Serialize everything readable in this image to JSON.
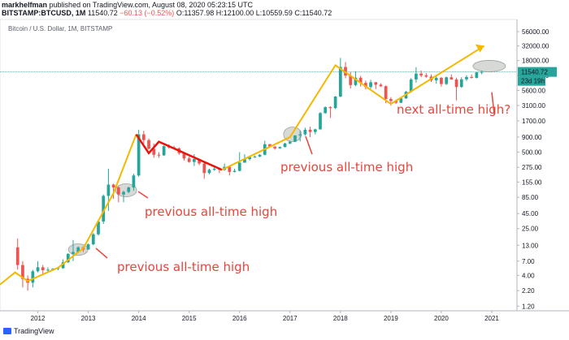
{
  "header": {
    "author": "markhelfman",
    "published": "published on TradingView.com, August 08, 2020 05:23:15 UTC",
    "symbol": "BITSTAMP:BTCUSD, 1M",
    "last": "11540.72",
    "change": "−60.13 (−0.52%)",
    "open": "O:11357.98",
    "high": "H:12100.00",
    "low": "L:10559.59",
    "close": "C:11540.72"
  },
  "footer": {
    "brand": "TradingView"
  },
  "chart_data": {
    "type": "candlestick",
    "title": "Bitcoin / U.S. Dollar, 1M, BITSTAMP",
    "y_scale": "log",
    "ylim": [
      1,
      90000
    ],
    "xlim": [
      2011.25,
      2021.5
    ],
    "y_ticks": [
      1.2,
      2.2,
      4.0,
      7.0,
      13.0,
      25.0,
      45.0,
      85.0,
      155.0,
      275.0,
      500.0,
      900.0,
      1700.0,
      3100.0,
      5600.0,
      10000.0,
      18000.0,
      32000.0,
      56000.0
    ],
    "x_ticks": [
      "2012",
      "2013",
      "2014",
      "2015",
      "2016",
      "2017",
      "2018",
      "2019",
      "2020",
      "2021"
    ],
    "last_price_label": "11540.72",
    "countdown_label": "23d 19h",
    "candles": [
      [
        2011.6,
        12,
        17,
        5,
        6
      ],
      [
        2011.7,
        6,
        7,
        2.5,
        3.5
      ],
      [
        2011.8,
        3.5,
        4,
        2.2,
        3
      ],
      [
        2011.9,
        3,
        5,
        2.5,
        4.7
      ],
      [
        2012.0,
        4.7,
        7,
        4.5,
        5.5
      ],
      [
        2012.1,
        5.5,
        6,
        4.3,
        4.9
      ],
      [
        2012.2,
        4.9,
        5.5,
        4.5,
        5
      ],
      [
        2012.3,
        5,
        5.3,
        4.8,
        5.2
      ],
      [
        2012.4,
        5.2,
        5.5,
        4.9,
        5.3
      ],
      [
        2012.5,
        5.3,
        7.5,
        5.2,
        6.7
      ],
      [
        2012.6,
        6.7,
        9.5,
        6.5,
        9.3
      ],
      [
        2012.7,
        9.3,
        16,
        7,
        10
      ],
      [
        2012.8,
        10,
        12.5,
        9.5,
        12
      ],
      [
        2012.9,
        12,
        12.5,
        10,
        11
      ],
      [
        2013.0,
        11,
        14,
        11,
        13.5
      ],
      [
        2013.1,
        13.5,
        21,
        13,
        20
      ],
      [
        2013.2,
        20,
        35,
        19,
        33
      ],
      [
        2013.3,
        33,
        95,
        30,
        90
      ],
      [
        2013.4,
        90,
        260,
        50,
        140
      ],
      [
        2013.5,
        140,
        145,
        80,
        125
      ],
      [
        2013.6,
        125,
        130,
        70,
        95
      ],
      [
        2013.7,
        95,
        110,
        70,
        105
      ],
      [
        2013.8,
        105,
        130,
        100,
        125
      ],
      [
        2013.9,
        125,
        215,
        110,
        200
      ],
      [
        2014.0,
        200,
        1200,
        190,
        1000
      ],
      [
        2014.1,
        1000,
        1150,
        700,
        800
      ],
      [
        2014.2,
        800,
        850,
        550,
        570
      ],
      [
        2014.3,
        570,
        700,
        400,
        450
      ],
      [
        2014.4,
        450,
        500,
        400,
        440
      ],
      [
        2014.5,
        440,
        650,
        430,
        630
      ],
      [
        2014.6,
        630,
        680,
        570,
        600
      ],
      [
        2014.7,
        600,
        640,
        560,
        580
      ],
      [
        2014.8,
        580,
        600,
        450,
        480
      ],
      [
        2014.9,
        480,
        490,
        360,
        390
      ],
      [
        2015.0,
        390,
        420,
        330,
        340
      ],
      [
        2015.1,
        340,
        460,
        290,
        380
      ],
      [
        2015.2,
        380,
        390,
        300,
        320
      ],
      [
        2015.3,
        320,
        330,
        175,
        220
      ],
      [
        2015.4,
        220,
        260,
        210,
        250
      ],
      [
        2015.5,
        250,
        300,
        240,
        260
      ],
      [
        2015.6,
        260,
        270,
        220,
        250
      ],
      [
        2015.7,
        250,
        320,
        240,
        280
      ],
      [
        2015.8,
        280,
        290,
        200,
        230
      ],
      [
        2015.9,
        230,
        260,
        225,
        240
      ],
      [
        2016.0,
        240,
        500,
        235,
        330
      ],
      [
        2016.1,
        330,
        460,
        340,
        380
      ],
      [
        2016.2,
        380,
        420,
        360,
        410
      ],
      [
        2016.3,
        410,
        440,
        400,
        420
      ],
      [
        2016.4,
        420,
        460,
        410,
        450
      ],
      [
        2016.5,
        450,
        780,
        440,
        680
      ],
      [
        2016.6,
        680,
        690,
        600,
        620
      ],
      [
        2016.7,
        620,
        630,
        550,
        580
      ],
      [
        2016.8,
        580,
        620,
        570,
        610
      ],
      [
        2016.9,
        610,
        720,
        600,
        700
      ],
      [
        2017.0,
        700,
        780,
        680,
        750
      ],
      [
        2017.1,
        750,
        960,
        740,
        960
      ],
      [
        2017.2,
        960,
        1150,
        760,
        1000
      ],
      [
        2017.3,
        1000,
        1300,
        950,
        1200
      ],
      [
        2017.4,
        1200,
        1350,
        900,
        1100
      ],
      [
        2017.5,
        1100,
        1250,
        1000,
        1220
      ],
      [
        2017.6,
        1220,
        2400,
        1200,
        2300
      ],
      [
        2017.7,
        2300,
        3000,
        2250,
        2900
      ],
      [
        2017.8,
        2900,
        3000,
        1900,
        2800
      ],
      [
        2017.9,
        2800,
        4500,
        2700,
        4400
      ],
      [
        2018.0,
        4400,
        20000,
        4300,
        14000
      ],
      [
        2018.1,
        14000,
        17000,
        9000,
        10000
      ],
      [
        2018.2,
        10000,
        11500,
        6000,
        6900
      ],
      [
        2018.3,
        6900,
        11700,
        6600,
        9200
      ],
      [
        2018.4,
        9200,
        9900,
        6500,
        7500
      ],
      [
        2018.5,
        7500,
        8200,
        5800,
        6400
      ],
      [
        2018.6,
        6400,
        8500,
        6000,
        7700
      ],
      [
        2018.7,
        7700,
        7800,
        5900,
        7000
      ],
      [
        2018.8,
        7000,
        7400,
        6400,
        6600
      ],
      [
        2018.9,
        6600,
        6800,
        3400,
        4000
      ],
      [
        2019.0,
        4000,
        4300,
        3100,
        3700
      ],
      [
        2019.1,
        3700,
        3900,
        3300,
        3450
      ],
      [
        2019.2,
        3450,
        4200,
        3400,
        4100
      ],
      [
        2019.3,
        4100,
        5500,
        4000,
        5300
      ],
      [
        2019.4,
        5300,
        9100,
        5100,
        8600
      ],
      [
        2019.5,
        8600,
        13900,
        7600,
        10800
      ],
      [
        2019.6,
        10800,
        12200,
        9400,
        10100
      ],
      [
        2019.7,
        10100,
        11000,
        9200,
        9600
      ],
      [
        2019.8,
        9600,
        10500,
        7800,
        8300
      ],
      [
        2019.9,
        8300,
        10300,
        7300,
        9150
      ],
      [
        2020.0,
        9150,
        9500,
        6500,
        7200
      ],
      [
        2020.1,
        7200,
        9600,
        6900,
        9350
      ],
      [
        2020.2,
        9350,
        10500,
        8500,
        8600
      ],
      [
        2020.3,
        8600,
        9200,
        3800,
        6400
      ],
      [
        2020.4,
        6400,
        9400,
        6200,
        8650
      ],
      [
        2020.5,
        8650,
        10100,
        8100,
        9450
      ],
      [
        2020.6,
        9450,
        10400,
        8900,
        9150
      ],
      [
        2020.7,
        9150,
        11500,
        8950,
        11350
      ],
      [
        2020.8,
        11350,
        12100,
        10560,
        11540
      ]
    ],
    "annotations": [
      "next all-time high?",
      "previous all-time high",
      "previous all-time high",
      "previous all-time high"
    ],
    "colors": {
      "up": "#26a69a",
      "down": "#ef5350",
      "trend_up": "#f5b800",
      "trend_down": "#e8130b",
      "annotation": "#e8453c",
      "highlight": "#9aa09a",
      "price_line": "#26a69a"
    }
  }
}
